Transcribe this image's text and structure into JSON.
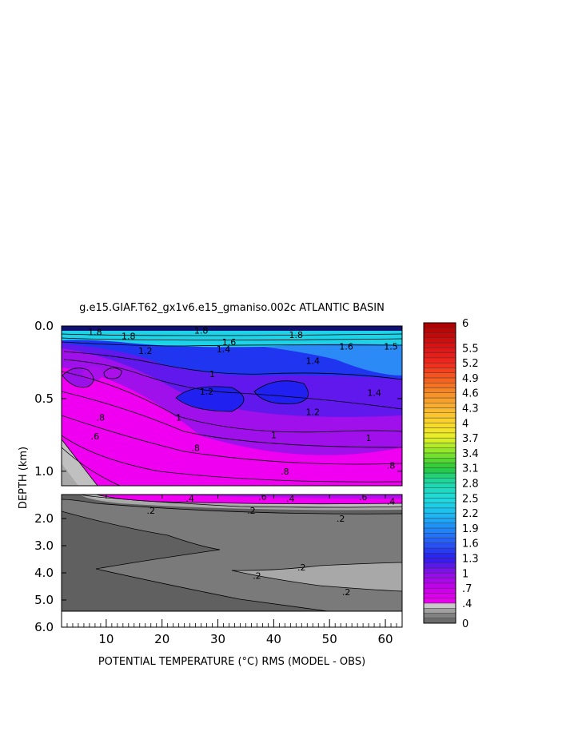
{
  "chart_data": {
    "type": "heatmap",
    "title": "g.e15.GIAF.T62_gx1v6.e15_gmaniso.002c ATLANTIC BASIN",
    "xlabel": "POTENTIAL TEMPERATURE (°C) RMS (MODEL - OBS)",
    "ylabel": "DEPTH (km)",
    "x_ticks": [
      "10",
      "20",
      "30",
      "40",
      "50",
      "60"
    ],
    "x_tick_values": [
      10,
      20,
      30,
      40,
      50,
      60
    ],
    "xlim": [
      2,
      63
    ],
    "upper_panel": {
      "y_ticks": [
        "0.0",
        "0.5",
        "1.0"
      ],
      "y_tick_values": [
        0.0,
        0.5,
        1.0
      ],
      "ylim": [
        0.0,
        1.1
      ]
    },
    "lower_panel": {
      "y_ticks": [
        "2.0",
        "3.0",
        "4.0",
        "5.0",
        "6.0"
      ],
      "y_tick_values": [
        2.0,
        3.0,
        4.0,
        5.0,
        6.0
      ],
      "ylim": [
        1.1,
        6.0
      ]
    },
    "contour_labels": [
      {
        "text": "1.8",
        "x": 8,
        "depth": 0.04
      },
      {
        "text": "1.8",
        "x": 14,
        "depth": 0.07
      },
      {
        "text": "1.8",
        "x": 27,
        "depth": 0.03
      },
      {
        "text": "1.8",
        "x": 44,
        "depth": 0.06
      },
      {
        "text": "1.6",
        "x": 32,
        "depth": 0.11
      },
      {
        "text": "1.6",
        "x": 53,
        "depth": 0.14
      },
      {
        "text": "1.5",
        "x": 61,
        "depth": 0.14
      },
      {
        "text": "1.4",
        "x": 31,
        "depth": 0.16
      },
      {
        "text": "1.4",
        "x": 47,
        "depth": 0.24
      },
      {
        "text": "1.4",
        "x": 58,
        "depth": 0.46
      },
      {
        "text": "1.2",
        "x": 17,
        "depth": 0.17
      },
      {
        "text": "1.2",
        "x": 28,
        "depth": 0.45
      },
      {
        "text": "1.2",
        "x": 47,
        "depth": 0.59
      },
      {
        "text": "1",
        "x": 29,
        "depth": 0.33
      },
      {
        "text": "1",
        "x": 23,
        "depth": 0.63
      },
      {
        "text": "1",
        "x": 40,
        "depth": 0.75
      },
      {
        "text": "1",
        "x": 57,
        "depth": 0.77
      },
      {
        "text": ".8",
        "x": 9,
        "depth": 0.63
      },
      {
        "text": ".8",
        "x": 26,
        "depth": 0.84
      },
      {
        "text": ".8",
        "x": 42,
        "depth": 1.0
      },
      {
        "text": ".8",
        "x": 61,
        "depth": 0.96
      },
      {
        "text": ".6",
        "x": 8,
        "depth": 0.76
      },
      {
        "text": ".6",
        "x": 38,
        "depth": 1.17
      },
      {
        "text": ".6",
        "x": 56,
        "depth": 1.19
      },
      {
        "text": ".4",
        "x": 25,
        "depth": 1.25
      },
      {
        "text": ".4",
        "x": 43,
        "depth": 1.25
      },
      {
        "text": ".4",
        "x": 61,
        "depth": 1.35
      },
      {
        "text": ".2",
        "x": 18,
        "depth": 1.7
      },
      {
        "text": ".2",
        "x": 36,
        "depth": 1.7
      },
      {
        "text": ".2",
        "x": 52,
        "depth": 2.0
      },
      {
        "text": ".2",
        "x": 37,
        "depth": 4.1
      },
      {
        "text": ".2",
        "x": 45,
        "depth": 3.8
      },
      {
        "text": ".2",
        "x": 53,
        "depth": 4.7
      }
    ],
    "colorbar": {
      "labels": [
        "6",
        "5.5",
        "5.2",
        "4.9",
        "4.6",
        "4.3",
        "4",
        "3.7",
        "3.4",
        "3.1",
        "2.8",
        "2.5",
        "2.2",
        "1.9",
        "1.6",
        "1.3",
        "1",
        ".7",
        ".4",
        "0"
      ],
      "min": 0,
      "max": 6
    },
    "colors": {
      "magenta": "#f000f0",
      "purple": "#9a10e8",
      "blue": "#1f35f0",
      "lightblue": "#2b8af5",
      "cyan": "#1ed2e8",
      "gray_light": "#c0c0c0",
      "gray_mid": "#a8a8a8",
      "gray_dark": "#7a7a7a",
      "gray_darkest": "#606060"
    }
  }
}
